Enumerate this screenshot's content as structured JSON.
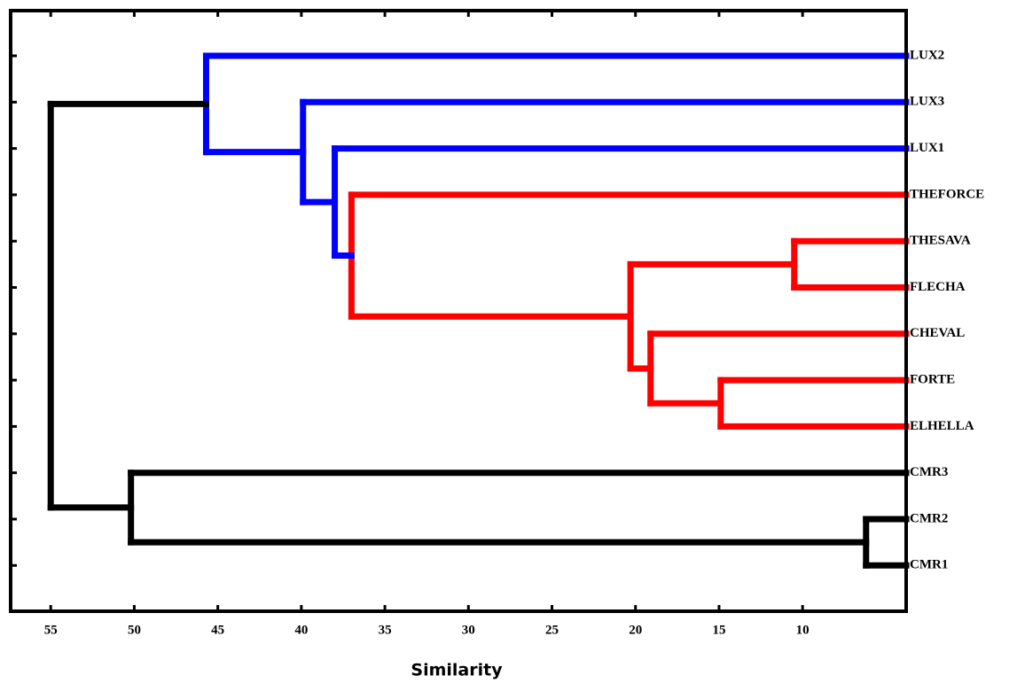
{
  "chart_data": {
    "type": "dendrogram",
    "xlabel": "Similarity",
    "leaves": [
      "LUX2",
      "LUX3",
      "LUX1",
      "THEFORCE",
      "THESAVA",
      "FLECHA",
      "CHEVAL",
      "FORTE",
      "ELHELLA",
      "CMR3",
      "CMR2",
      "CMR1"
    ],
    "merges": [
      {
        "children": [
          4,
          5
        ],
        "height": 10.5,
        "color": "#ff0000"
      },
      {
        "children": [
          7,
          8
        ],
        "height": 14.9,
        "color": "#ff0000"
      },
      {
        "children": [
          6,
          13
        ],
        "height": 19.1,
        "color": "#ff0000"
      },
      {
        "children": [
          12,
          14
        ],
        "height": 20.3,
        "color": "#ff0000"
      },
      {
        "children": [
          3,
          15
        ],
        "height": 37.0,
        "color": "#ff0000"
      },
      {
        "children": [
          2,
          16
        ],
        "height": 38.0,
        "color": "#0000ff"
      },
      {
        "children": [
          1,
          17
        ],
        "height": 39.9,
        "color": "#0000ff"
      },
      {
        "children": [
          0,
          18
        ],
        "height": 45.7,
        "color": "#0000ff"
      },
      {
        "children": [
          10,
          11
        ],
        "height": 6.2,
        "color": "#000000"
      },
      {
        "children": [
          9,
          20
        ],
        "height": 50.2,
        "color": "#000000"
      },
      {
        "children": [
          19,
          21
        ],
        "height": 55.0,
        "color": "#000000"
      }
    ],
    "xlim": [
      57.4,
      3.8
    ],
    "xticks": [
      55,
      50,
      45,
      40,
      35,
      30,
      25,
      20,
      15,
      10
    ]
  }
}
